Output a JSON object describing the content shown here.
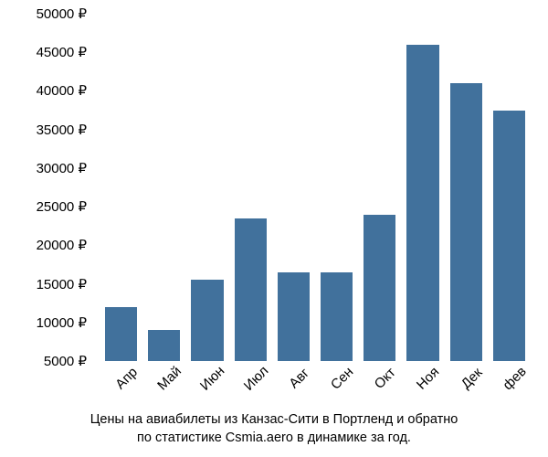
{
  "chart": {
    "type": "bar",
    "categories": [
      "Апр",
      "Май",
      "Июн",
      "Июл",
      "Авг",
      "Сен",
      "Окт",
      "Ноя",
      "Дек",
      "фев"
    ],
    "values": [
      12000,
      9000,
      15500,
      23500,
      16500,
      16500,
      24000,
      46000,
      41000,
      37500
    ],
    "bar_color": "#41719c",
    "background_color": "#ffffff",
    "ylim": [
      5000,
      50000
    ],
    "ytick_step": 5000,
    "y_ticks": [
      5000,
      10000,
      15000,
      20000,
      25000,
      30000,
      35000,
      40000,
      45000,
      50000
    ],
    "y_tick_labels": [
      "5000 ₽",
      "10000 ₽",
      "15000 ₽",
      "20000 ₽",
      "25000 ₽",
      "30000 ₽",
      "35000 ₽",
      "40000 ₽",
      "45000 ₽",
      "50000 ₽"
    ],
    "x_label_rotation_deg": -45,
    "axis_fontsize": 15,
    "caption_fontsize": 14.5,
    "text_color": "#000000",
    "caption_line1": "Цены на авиабилеты из Канзас-Сити в Портленд и обратно",
    "caption_line2": "по статистике Csmia.aero в динамике за год."
  }
}
